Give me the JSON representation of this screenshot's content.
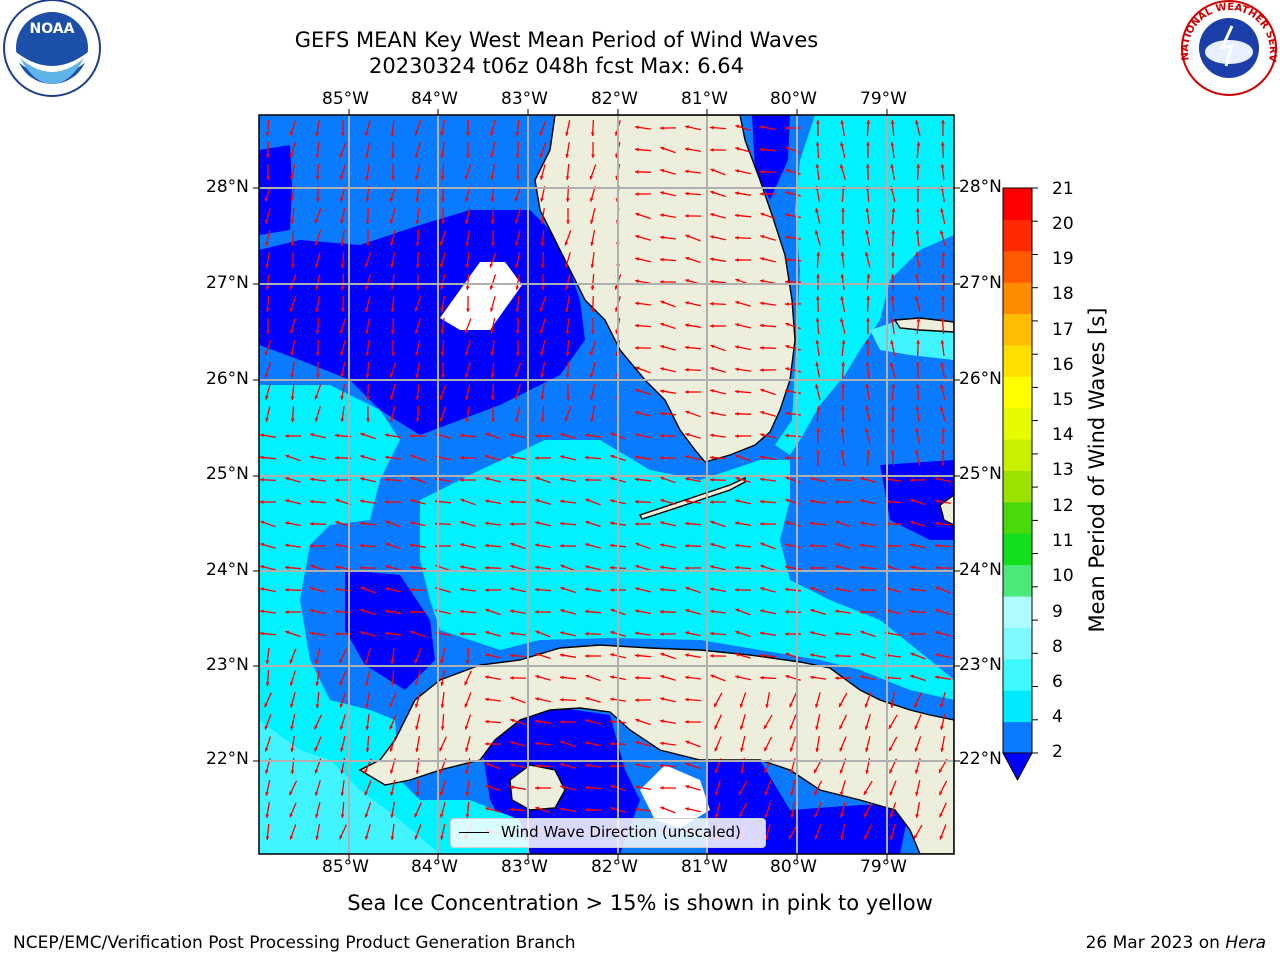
{
  "title": {
    "line1": "GEFS MEAN Key West Mean Period of Wind Waves",
    "line2": "20230324 t06z 048h fcst   Max: 6.64"
  },
  "lon_labels": [
    "85°W",
    "84°W",
    "83°W",
    "82°W",
    "81°W",
    "80°W",
    "79°W"
  ],
  "lat_labels": [
    "28°N",
    "27°N",
    "26°N",
    "25°N",
    "24°N",
    "23°N",
    "22°N"
  ],
  "colorbar": {
    "title": "Mean Period of Wind Waves [s]",
    "ticks": [
      "2",
      "4",
      "6",
      "8",
      "9",
      "10",
      "11",
      "12",
      "13",
      "14",
      "15",
      "16",
      "17",
      "18",
      "19",
      "20",
      "21"
    ],
    "colors": [
      "#0a7bff",
      "#00e9ff",
      "#3ef8ff",
      "#7ff8ff",
      "#aefcff",
      "#4be87a",
      "#12e01e",
      "#4ad90a",
      "#9be200",
      "#c8f000",
      "#e6fb00",
      "#ffff00",
      "#ffdf00",
      "#ffbc00",
      "#ff8c00",
      "#ff5a00",
      "#ff2a00",
      "#ff0000"
    ],
    "under_color": "#0000ff"
  },
  "legend": {
    "label": "Wind Wave Direction (unscaled)"
  },
  "note": "Sea Ice Concentration > 15% is shown in pink to yellow",
  "footer": {
    "left": "NCEP/EMC/Verification Post Processing Product Generation Branch",
    "right_date": "26 Mar 2023 on ",
    "right_host": "Hera"
  },
  "logos": {
    "left": "NOAA",
    "right": "NATIONAL WEATHER SERVICE"
  },
  "map_colors": {
    "dark": "#0000ff",
    "mid": "#0a7bff",
    "cyan": "#00f2ff",
    "light": "#40f5ff",
    "land": "#eeeedc",
    "arrow": "#ff0000"
  }
}
